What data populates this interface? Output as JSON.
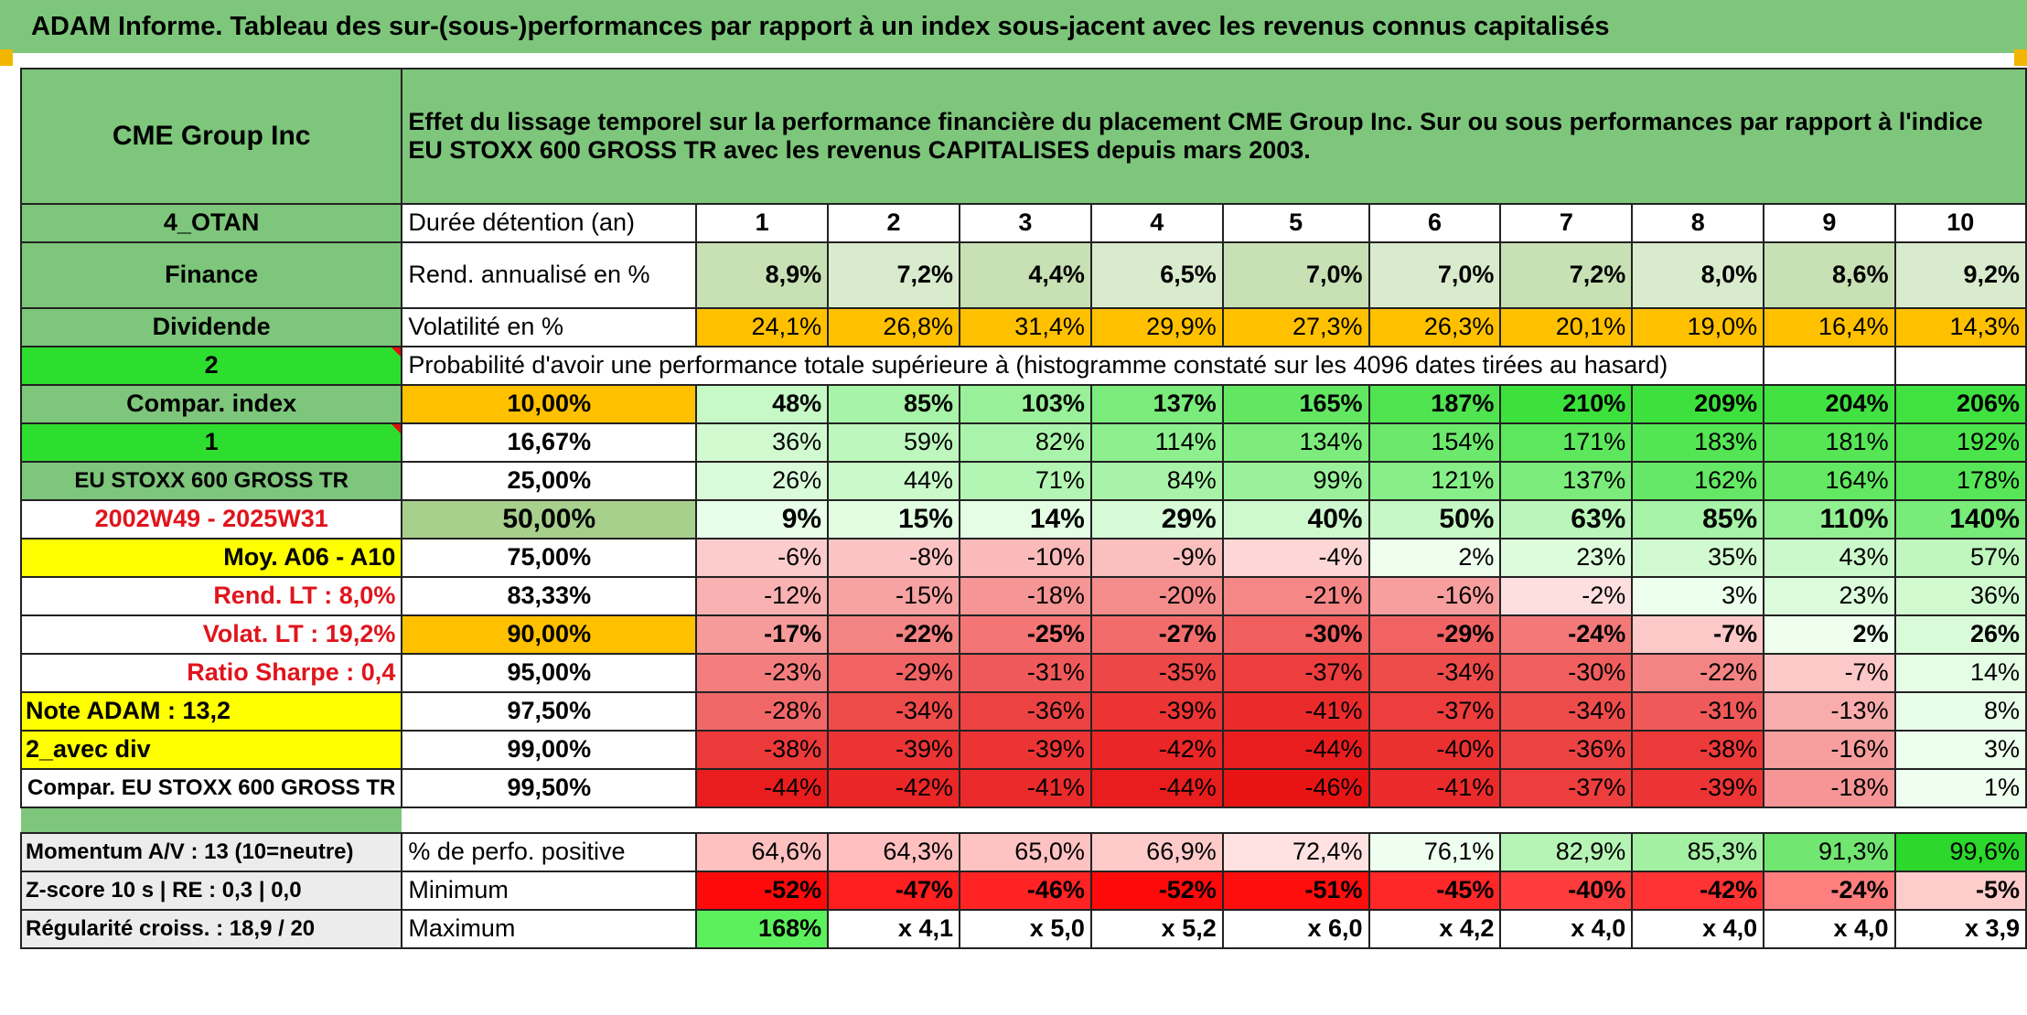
{
  "title": "ADAM Informe. Tableau des sur-(sous-)performances par rapport à un index sous-jacent avec les revenus connus capitalisés",
  "header": {
    "company": "CME Group Inc",
    "description": "Effet du lissage temporel sur la performance financière du placement CME Group Inc. Sur ou sous performances par rapport à l'indice EU STOXX 600 GROSS TR avec les revenus CAPITALISES depuis mars 2003."
  },
  "info": {
    "code": "4_OTAN",
    "sector": "Finance",
    "type": "Dividende",
    "rank2": "2",
    "compar_index": "Compar. index",
    "rank1": "1",
    "index_name": "EU STOXX 600 GROSS TR",
    "period": "2002W49 - 2025W31",
    "moy": "Moy. A06 - A10",
    "rend_lt": "Rend. LT :   8,0%",
    "volat_lt": "Volat. LT :   19,2%",
    "sharpe": "Ratio Sharpe :   0,4",
    "note": "Note ADAM : 13,2",
    "avec_div": "2_avec div",
    "compar_full": "Compar. EU STOXX 600 GROSS TR",
    "momentum": "Momentum A/V : 13 (10=neutre)",
    "zscore": "Z-score 10 s | RE : 0,3 | 0,0",
    "regularite": "Régularité croiss. : 18,9 / 20"
  },
  "labels": {
    "duree": "Durée détention (an)",
    "rend": "Rend. annualisé en %",
    "vol": "Volatilité en %",
    "proba": "Probabilité d'avoir une performance totale supérieure à (histogramme constaté sur les 4096 dates tirées au hasard)",
    "perfo_pos": "% de perfo. positive",
    "minimum": "Minimum",
    "maximum": "Maximum"
  },
  "years": [
    "1",
    "2",
    "3",
    "4",
    "5",
    "6",
    "7",
    "8",
    "9",
    "10"
  ],
  "rend": [
    "8,9%",
    "7,2%",
    "4,4%",
    "6,5%",
    "7,0%",
    "7,0%",
    "7,2%",
    "8,0%",
    "8,6%",
    "9,2%"
  ],
  "vol": [
    "24,1%",
    "26,8%",
    "31,4%",
    "29,9%",
    "27,3%",
    "26,3%",
    "20,1%",
    "19,0%",
    "16,4%",
    "14,3%"
  ],
  "quantile_rows": [
    {
      "q": "10,00%",
      "v": [
        "48%",
        "85%",
        "103%",
        "137%",
        "165%",
        "187%",
        "210%",
        "209%",
        "204%",
        "206%"
      ]
    },
    {
      "q": "16,67%",
      "v": [
        "36%",
        "59%",
        "82%",
        "114%",
        "134%",
        "154%",
        "171%",
        "183%",
        "181%",
        "192%"
      ]
    },
    {
      "q": "25,00%",
      "v": [
        "26%",
        "44%",
        "71%",
        "84%",
        "99%",
        "121%",
        "137%",
        "162%",
        "164%",
        "178%"
      ]
    },
    {
      "q": "50,00%",
      "v": [
        "9%",
        "15%",
        "14%",
        "29%",
        "40%",
        "50%",
        "63%",
        "85%",
        "110%",
        "140%"
      ]
    },
    {
      "q": "75,00%",
      "v": [
        "-6%",
        "-8%",
        "-10%",
        "-9%",
        "-4%",
        "2%",
        "23%",
        "35%",
        "43%",
        "57%"
      ]
    },
    {
      "q": "83,33%",
      "v": [
        "-12%",
        "-15%",
        "-18%",
        "-20%",
        "-21%",
        "-16%",
        "-2%",
        "3%",
        "23%",
        "36%"
      ]
    },
    {
      "q": "90,00%",
      "v": [
        "-17%",
        "-22%",
        "-25%",
        "-27%",
        "-30%",
        "-29%",
        "-24%",
        "-7%",
        "2%",
        "26%"
      ]
    },
    {
      "q": "95,00%",
      "v": [
        "-23%",
        "-29%",
        "-31%",
        "-35%",
        "-37%",
        "-34%",
        "-30%",
        "-22%",
        "-7%",
        "14%"
      ]
    },
    {
      "q": "97,50%",
      "v": [
        "-28%",
        "-34%",
        "-36%",
        "-39%",
        "-41%",
        "-37%",
        "-34%",
        "-31%",
        "-13%",
        "8%"
      ]
    },
    {
      "q": "99,00%",
      "v": [
        "-38%",
        "-39%",
        "-39%",
        "-42%",
        "-44%",
        "-40%",
        "-36%",
        "-38%",
        "-16%",
        "3%"
      ]
    },
    {
      "q": "99,50%",
      "v": [
        "-44%",
        "-42%",
        "-41%",
        "-44%",
        "-46%",
        "-41%",
        "-37%",
        "-39%",
        "-18%",
        "1%"
      ]
    }
  ],
  "perfo_pos": [
    "64,6%",
    "64,3%",
    "65,0%",
    "66,9%",
    "72,4%",
    "76,1%",
    "82,9%",
    "85,3%",
    "91,3%",
    "99,6%"
  ],
  "minimum": [
    "-52%",
    "-47%",
    "-46%",
    "-52%",
    "-51%",
    "-45%",
    "-40%",
    "-42%",
    "-24%",
    "-5%"
  ],
  "maximum": [
    "168%",
    "x 4,1",
    "x 5,0",
    "x 5,2",
    "x 6,0",
    "x 4,2",
    "x 4,0",
    "x 4,0",
    "x 4,0",
    "x 3,9"
  ],
  "colors": {
    "header_green": "#7dc67b",
    "light_green": "#a8d08d",
    "bright_green": "#2ede2e",
    "highlight_yellow": "#ffff00",
    "highlight_orange": "#ffc000",
    "label_red": "#e0141c"
  }
}
